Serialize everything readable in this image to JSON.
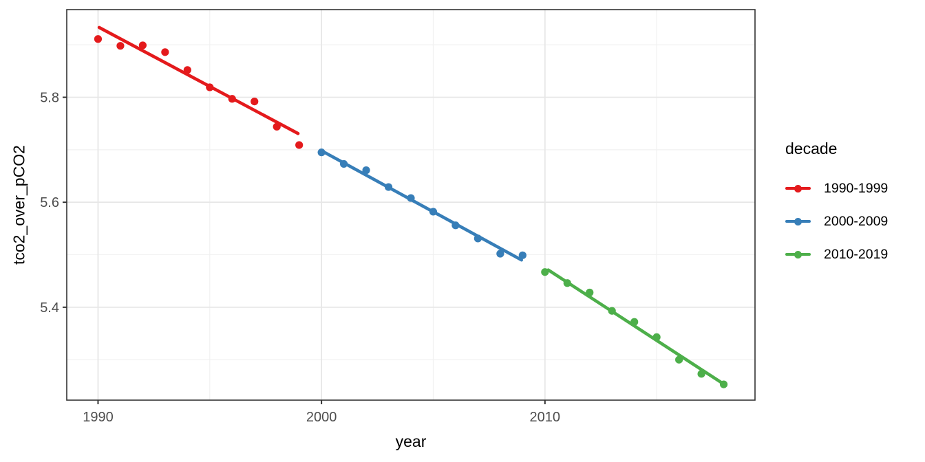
{
  "chart_data": {
    "type": "scatter",
    "title": "",
    "xlabel": "year",
    "ylabel": "tco2_over_pCO2",
    "xlim": [
      1988.6,
      2019.4
    ],
    "ylim": [
      5.223,
      5.967
    ],
    "grid": true,
    "legend_position": "right",
    "x_major_ticks": [
      {
        "value": 1990,
        "label": "1990"
      },
      {
        "value": 2000,
        "label": "2000"
      },
      {
        "value": 2010,
        "label": "2010"
      }
    ],
    "x_minor_ticks": [
      1995,
      2005,
      2015
    ],
    "y_major_ticks": [
      {
        "value": 5.8,
        "label": "5.8"
      },
      {
        "value": 5.6,
        "label": "5.6"
      },
      {
        "value": 5.4,
        "label": "5.4"
      }
    ],
    "y_minor_ticks": [
      5.9,
      5.7,
      5.5,
      5.3
    ],
    "series": [
      {
        "name": "1990-1999",
        "color": "#E41A1C",
        "x": [
          1990,
          1991,
          1992,
          1993,
          1994,
          1995,
          1996,
          1997,
          1998,
          1999
        ],
        "y": [
          5.911,
          5.898,
          5.899,
          5.886,
          5.852,
          5.819,
          5.797,
          5.792,
          5.744,
          5.709
        ],
        "trend": {
          "x1": 1990.05,
          "y1": 5.933,
          "x2": 1998.95,
          "y2": 5.731
        }
      },
      {
        "name": "2000-2009",
        "color": "#377EB8",
        "x": [
          2000,
          2001,
          2002,
          2003,
          2004,
          2005,
          2006,
          2007,
          2008,
          2009
        ],
        "y": [
          5.695,
          5.673,
          5.661,
          5.629,
          5.608,
          5.582,
          5.556,
          5.531,
          5.502,
          5.499
        ],
        "trend": {
          "x1": 2000.05,
          "y1": 5.697,
          "x2": 2008.95,
          "y2": 5.49
        }
      },
      {
        "name": "2010-2019",
        "color": "#4DAF4A",
        "x": [
          2010,
          2011,
          2012,
          2013,
          2014,
          2015,
          2016,
          2017,
          2018
        ],
        "y": [
          5.467,
          5.446,
          5.428,
          5.393,
          5.372,
          5.343,
          5.3,
          5.273,
          5.253
        ],
        "trend": {
          "x1": 2010.15,
          "y1": 5.471,
          "x2": 2017.95,
          "y2": 5.255
        }
      }
    ]
  },
  "legend": {
    "title": "decade",
    "entries": [
      {
        "label": "1990-1999",
        "color": "#E41A1C"
      },
      {
        "label": "2000-2009",
        "color": "#377EB8"
      },
      {
        "label": "2010-2019",
        "color": "#4DAF4A"
      }
    ]
  },
  "theme": {
    "background": "#ffffff",
    "panel_background": "#ffffff",
    "panel_border": "#333333",
    "grid_major": "#e7e7e7",
    "grid_minor": "#f1f1f1",
    "tick_color": "#333333",
    "axis_text_color": "#4d4d4d",
    "title_color": "#000000"
  }
}
